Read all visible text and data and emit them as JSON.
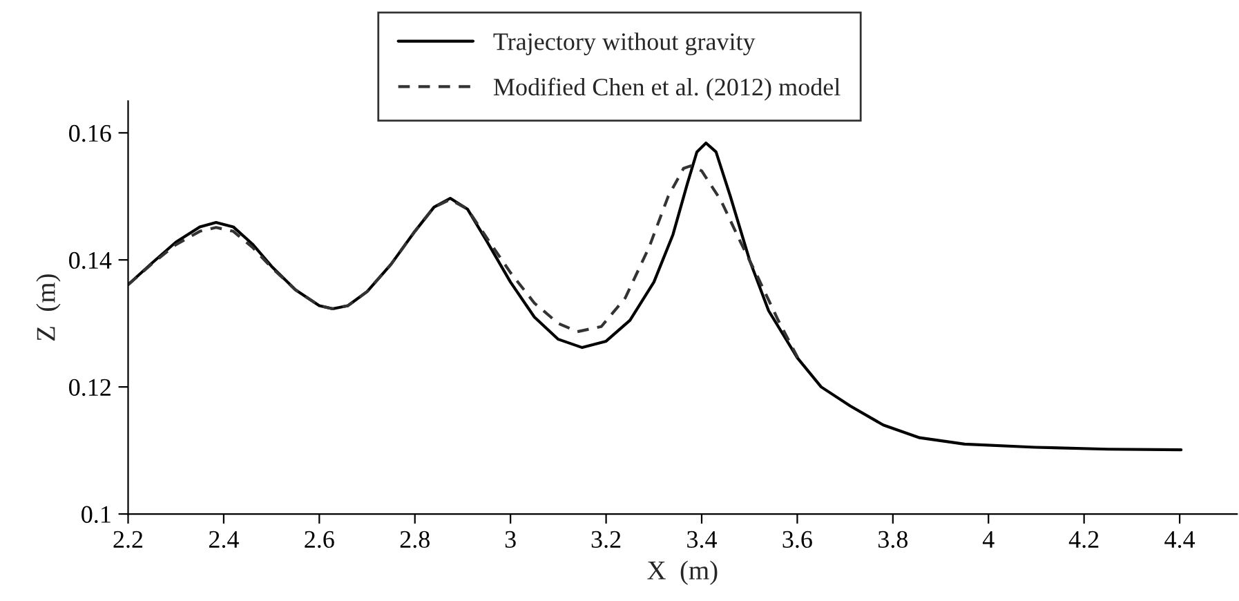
{
  "chart_data": {
    "type": "line",
    "xlabel": "X  (m)",
    "ylabel": "Z  (m)",
    "xlim": [
      2.2,
      4.52
    ],
    "ylim": [
      0.1,
      0.165
    ],
    "xticks": [
      2.2,
      2.4,
      2.6,
      2.8,
      3,
      3.2,
      3.4,
      3.6,
      3.8,
      4,
      4.2,
      4.4
    ],
    "yticks": [
      0.1,
      0.12,
      0.14,
      0.16
    ],
    "grid": false,
    "legend": "top",
    "marker": "none",
    "series": [
      {
        "name": "Trajectory without gravity",
        "color": "#000000",
        "line_style": "solid",
        "x": [
          2.2,
          2.25,
          2.3,
          2.35,
          2.384,
          2.42,
          2.46,
          2.5,
          2.55,
          2.6,
          2.628,
          2.66,
          2.7,
          2.75,
          2.8,
          2.84,
          2.874,
          2.91,
          2.95,
          3.0,
          3.05,
          3.1,
          3.15,
          3.2,
          3.25,
          3.3,
          3.34,
          3.37,
          3.39,
          3.409,
          3.43,
          3.46,
          3.5,
          3.54,
          3.6,
          3.65,
          3.711,
          3.78,
          3.856,
          3.95,
          4.098,
          4.25,
          4.403
        ],
        "values": [
          0.1361,
          0.1395,
          0.1428,
          0.1452,
          0.1459,
          0.1452,
          0.1425,
          0.139,
          0.1353,
          0.1328,
          0.1323,
          0.1328,
          0.135,
          0.1393,
          0.1445,
          0.1483,
          0.1497,
          0.148,
          0.143,
          0.1365,
          0.131,
          0.1275,
          0.1262,
          0.1272,
          0.1305,
          0.1365,
          0.144,
          0.152,
          0.157,
          0.1584,
          0.157,
          0.15,
          0.14,
          0.132,
          0.1246,
          0.12,
          0.117,
          0.114,
          0.112,
          0.111,
          0.1105,
          0.1102,
          0.1101
        ]
      },
      {
        "name": "Modified Chen et al. (2012) model",
        "color": "#333333",
        "line_style": "dashed",
        "x": [
          2.2,
          2.25,
          2.3,
          2.35,
          2.384,
          2.42,
          2.46,
          2.5,
          2.55,
          2.6,
          2.628,
          2.66,
          2.7,
          2.75,
          2.8,
          2.84,
          2.874,
          2.91,
          2.95,
          3.0,
          3.05,
          3.1,
          3.14,
          3.19,
          3.24,
          3.29,
          3.33,
          3.362,
          3.377,
          3.4,
          3.44,
          3.48,
          3.518,
          3.56,
          3.601
        ],
        "values": [
          0.1361,
          0.1394,
          0.1424,
          0.1445,
          0.1451,
          0.1445,
          0.142,
          0.1388,
          0.1353,
          0.1328,
          0.1323,
          0.1328,
          0.135,
          0.1393,
          0.1445,
          0.1483,
          0.1495,
          0.148,
          0.1435,
          0.138,
          0.1332,
          0.13,
          0.1287,
          0.1295,
          0.134,
          0.142,
          0.15,
          0.1544,
          0.1548,
          0.154,
          0.1494,
          0.143,
          0.1372,
          0.1305,
          0.1246
        ]
      }
    ]
  }
}
